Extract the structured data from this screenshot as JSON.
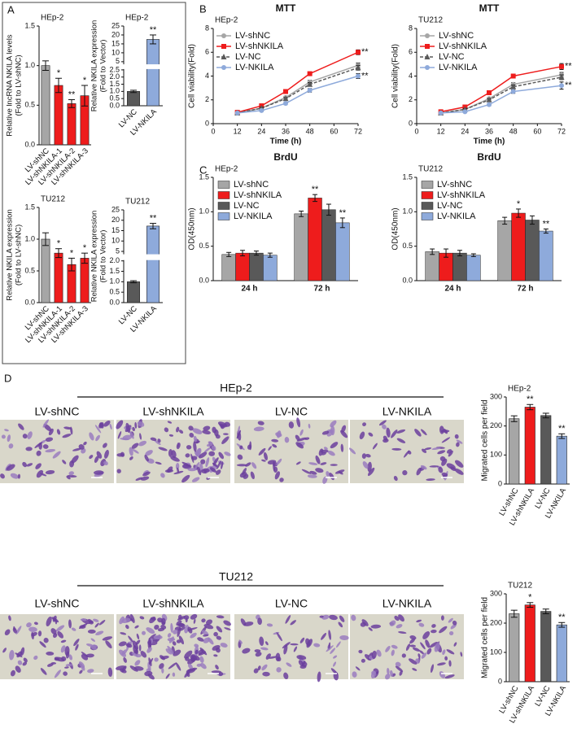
{
  "panels": [
    "A",
    "B",
    "C",
    "D"
  ],
  "migration": [
    {
      "title": "HEp-2",
      "images": [
        "LV-shNC",
        "LV-shNKILA",
        "LV-NC",
        "LV-NKILA"
      ]
    },
    {
      "title": "TU212",
      "images": [
        "LV-shNC",
        "LV-shNKILA",
        "LV-NC",
        "LV-NKILA"
      ]
    }
  ],
  "chart_data": [
    {
      "type": "bar",
      "subtitle": "HEp-2",
      "ylabel": [
        "Relative lncRNA NKILA levels",
        "(Fold to LV-shNC)"
      ],
      "categories": [
        "LV-shNC",
        "LV-shNKILA-1",
        "LV-shNKILA-2",
        "LV-shNKILA-3"
      ],
      "values": [
        1.0,
        0.75,
        0.52,
        0.62
      ],
      "errors": [
        0.06,
        0.09,
        0.05,
        0.13
      ],
      "colors": [
        "#a6a6a6",
        "#ee1c1c",
        "#ee1c1c",
        "#ee1c1c"
      ],
      "significance": [
        null,
        "*",
        "**",
        "*"
      ],
      "ylim": [
        0,
        1.5
      ],
      "yticks": [
        {
          "value": 0,
          "label": "0.0"
        },
        0.5,
        {
          "value": 1,
          "label": "1.0"
        },
        1.5
      ]
    },
    {
      "type": "bar",
      "subtitle": "HEp-2",
      "ylabel": [
        "Relative NKILA expression",
        "(Fold to Vector)"
      ],
      "categories": [
        "LV-NC",
        "LV-NKILA"
      ],
      "values": [
        1.0,
        17.5
      ],
      "errors": [
        0.08,
        2.5
      ],
      "colors": [
        "#595959",
        "#8eaadb"
      ],
      "significance": [
        null,
        "**"
      ],
      "ylim": [
        0,
        25
      ],
      "ybreak": [
        2.5,
        4
      ],
      "yticks": [
        {
          "value": 0,
          "label": "0.0"
        },
        0.5,
        {
          "value": 1,
          "label": "1.0"
        },
        1.5,
        {
          "value": 2,
          "label": "2.0"
        },
        2.5,
        5,
        10,
        15,
        20,
        25
      ]
    },
    {
      "type": "bar",
      "subtitle": "TU212",
      "ylabel": [
        "Relative NKILA expression",
        "(Fold to LV-shNC)"
      ],
      "categories": [
        "LV-shNC",
        "LV-shNKILA-1",
        "LV-shNKILA-2",
        "LV-shNKILA-3"
      ],
      "values": [
        1.0,
        0.78,
        0.6,
        0.7
      ],
      "errors": [
        0.1,
        0.07,
        0.1,
        0.08
      ],
      "colors": [
        "#a6a6a6",
        "#ee1c1c",
        "#ee1c1c",
        "#ee1c1c"
      ],
      "significance": [
        null,
        "*",
        "*",
        "*"
      ],
      "ylim": [
        0,
        1.5
      ],
      "yticks": [
        {
          "value": 0,
          "label": "0.0"
        },
        0.5,
        {
          "value": 1,
          "label": "1.0"
        },
        1.5
      ]
    },
    {
      "type": "bar",
      "subtitle": "TU212",
      "ylabel": [
        "Relative NKILA expression",
        "(Fold to Vector)"
      ],
      "categories": [
        "LV-NC",
        "LV-NKILA"
      ],
      "values": [
        1.0,
        17.2
      ],
      "errors": [
        0.05,
        1.3
      ],
      "colors": [
        "#595959",
        "#8eaadb"
      ],
      "significance": [
        null,
        "**"
      ],
      "ylim": [
        0,
        25
      ],
      "ybreak": [
        2,
        4
      ],
      "yticks": [
        {
          "value": 0,
          "label": "0.0"
        },
        0.5,
        {
          "value": 1,
          "label": "1.0"
        },
        1.5,
        {
          "value": 2,
          "label": "2.0"
        },
        5,
        10,
        15,
        20,
        25
      ]
    },
    {
      "type": "line",
      "title": "MTT",
      "subtitle": "HEp-2",
      "xlabel": "Time (h)",
      "ylabel": "Cell viability(Fold)",
      "x": [
        12,
        24,
        36,
        48,
        72
      ],
      "xlim": [
        0,
        72
      ],
      "xticks": [
        0,
        12,
        24,
        36,
        48,
        60,
        72
      ],
      "ylim": [
        0,
        8
      ],
      "yticks": [
        0,
        2,
        4,
        6,
        8
      ],
      "series": [
        {
          "name": "LV-shNC",
          "color": "#a6a6a6",
          "marker": "circle",
          "dash": false,
          "values": [
            0.9,
            1.3,
            2.2,
            3.5,
            4.9
          ],
          "errors": [
            0.05,
            0.08,
            0.1,
            0.15,
            0.2
          ]
        },
        {
          "name": "LV-shNKILA",
          "color": "#ee1c1c",
          "marker": "square",
          "dash": false,
          "values": [
            0.95,
            1.5,
            2.7,
            4.2,
            6.0
          ],
          "errors": [
            0.05,
            0.08,
            0.1,
            0.15,
            0.2
          ],
          "end_label": "**"
        },
        {
          "name": "LV-NC",
          "color": "#595959",
          "marker": "triangle",
          "dash": true,
          "values": [
            0.9,
            1.3,
            2.1,
            3.3,
            4.7
          ],
          "errors": [
            0.05,
            0.08,
            0.1,
            0.15,
            0.2
          ]
        },
        {
          "name": "LV-NKILA",
          "color": "#8eaadb",
          "marker": "circle",
          "dash": false,
          "values": [
            0.9,
            1.1,
            1.7,
            2.8,
            4.0
          ],
          "errors": [
            0.05,
            0.08,
            0.1,
            0.15,
            0.2
          ],
          "end_label": "**"
        }
      ]
    },
    {
      "type": "line",
      "title": "MTT",
      "subtitle": "TU212",
      "xlabel": "Time (h)",
      "ylabel": "Cell viability(Fold)",
      "x": [
        12,
        24,
        36,
        48,
        72
      ],
      "xlim": [
        0,
        72
      ],
      "xticks": [
        0,
        12,
        24,
        36,
        48,
        60,
        72
      ],
      "ylim": [
        0,
        8
      ],
      "yticks": [
        0,
        2,
        4,
        6,
        8
      ],
      "series": [
        {
          "name": "LV-shNC",
          "color": "#a6a6a6",
          "marker": "circle",
          "dash": false,
          "values": [
            0.9,
            1.2,
            2.1,
            3.3,
            4.1
          ],
          "errors": [
            0.05,
            0.08,
            0.1,
            0.15,
            0.2
          ]
        },
        {
          "name": "LV-shNKILA",
          "color": "#ee1c1c",
          "marker": "square",
          "dash": false,
          "values": [
            1.0,
            1.4,
            2.6,
            4.0,
            4.8
          ],
          "errors": [
            0.05,
            0.08,
            0.1,
            0.15,
            0.25
          ],
          "end_label": "**"
        },
        {
          "name": "LV-NC",
          "color": "#595959",
          "marker": "triangle",
          "dash": true,
          "values": [
            0.9,
            1.2,
            2.0,
            3.1,
            3.9
          ],
          "errors": [
            0.05,
            0.08,
            0.1,
            0.15,
            0.2
          ]
        },
        {
          "name": "LV-NKILA",
          "color": "#8eaadb",
          "marker": "circle",
          "dash": false,
          "values": [
            0.9,
            1.0,
            1.6,
            2.7,
            3.2
          ],
          "errors": [
            0.05,
            0.08,
            0.1,
            0.15,
            0.3
          ],
          "end_label": "**"
        }
      ]
    },
    {
      "type": "grouped_bar",
      "title": "BrdU",
      "subtitle": "HEp-2",
      "ylabel": "OD(450nm)",
      "categories": [
        "24 h",
        "72 h"
      ],
      "ylim": [
        0,
        1.5
      ],
      "yticks": [
        {
          "value": 0,
          "label": "0.0"
        },
        0.5,
        {
          "value": 1,
          "label": "1.0"
        },
        1.5
      ],
      "series": [
        {
          "name": "LV-shNC",
          "color": "#a6a6a6",
          "values": [
            0.38,
            0.97
          ],
          "errors": [
            0.03,
            0.04
          ],
          "significance": [
            null,
            null
          ]
        },
        {
          "name": "LV-shNKILA",
          "color": "#ee1c1c",
          "values": [
            0.4,
            1.2
          ],
          "errors": [
            0.04,
            0.05
          ],
          "significance": [
            null,
            "**"
          ]
        },
        {
          "name": "LV-NC",
          "color": "#595959",
          "values": [
            0.4,
            1.03
          ],
          "errors": [
            0.03,
            0.08
          ],
          "significance": [
            null,
            null
          ]
        },
        {
          "name": "LV-NKILA",
          "color": "#8eaadb",
          "values": [
            0.37,
            0.84
          ],
          "errors": [
            0.03,
            0.07
          ],
          "significance": [
            null,
            "**"
          ]
        }
      ]
    },
    {
      "type": "grouped_bar",
      "title": "BrdU",
      "subtitle": "TU212",
      "ylabel": "OD(450nm)",
      "categories": [
        "24 h",
        "72 h"
      ],
      "ylim": [
        0,
        1.5
      ],
      "yticks": [
        {
          "value": 0,
          "label": "0.0"
        },
        0.5,
        {
          "value": 1,
          "label": "1.0"
        },
        1.5
      ],
      "series": [
        {
          "name": "LV-shNC",
          "color": "#a6a6a6",
          "values": [
            0.42,
            0.87
          ],
          "errors": [
            0.04,
            0.05
          ],
          "significance": [
            null,
            null
          ]
        },
        {
          "name": "LV-shNKILA",
          "color": "#ee1c1c",
          "values": [
            0.4,
            0.98
          ],
          "errors": [
            0.06,
            0.06
          ],
          "significance": [
            null,
            "*"
          ]
        },
        {
          "name": "LV-NC",
          "color": "#595959",
          "values": [
            0.4,
            0.88
          ],
          "errors": [
            0.04,
            0.06
          ],
          "significance": [
            null,
            null
          ]
        },
        {
          "name": "LV-NKILA",
          "color": "#8eaadb",
          "values": [
            0.37,
            0.72
          ],
          "errors": [
            0.02,
            0.03
          ],
          "significance": [
            null,
            "**"
          ]
        }
      ]
    },
    {
      "type": "bar",
      "subtitle": "HEp-2",
      "ylabel": "Migrated cells per field",
      "categories": [
        "LV-shNC",
        "LV-shNKILA",
        "LV-NC",
        "LV-NKILA"
      ],
      "values": [
        225,
        265,
        236,
        165
      ],
      "errors": [
        10,
        9,
        8,
        8
      ],
      "colors": [
        "#a6a6a6",
        "#ee1c1c",
        "#595959",
        "#8eaadb"
      ],
      "significance": [
        null,
        "**",
        null,
        "**"
      ],
      "ylim": [
        0,
        300
      ],
      "yticks": [
        0,
        100,
        200,
        300
      ]
    },
    {
      "type": "bar",
      "subtitle": "TU212",
      "ylabel": "Migrated cells per field",
      "categories": [
        "LV-shNC",
        "LV-shNKILA",
        "LV-NC",
        "LV-NKILA"
      ],
      "values": [
        232,
        262,
        240,
        194
      ],
      "errors": [
        12,
        8,
        8,
        8
      ],
      "colors": [
        "#a6a6a6",
        "#ee1c1c",
        "#595959",
        "#8eaadb"
      ],
      "significance": [
        null,
        "*",
        null,
        "**"
      ],
      "ylim": [
        0,
        300
      ],
      "yticks": [
        0,
        100,
        200,
        300
      ]
    }
  ]
}
